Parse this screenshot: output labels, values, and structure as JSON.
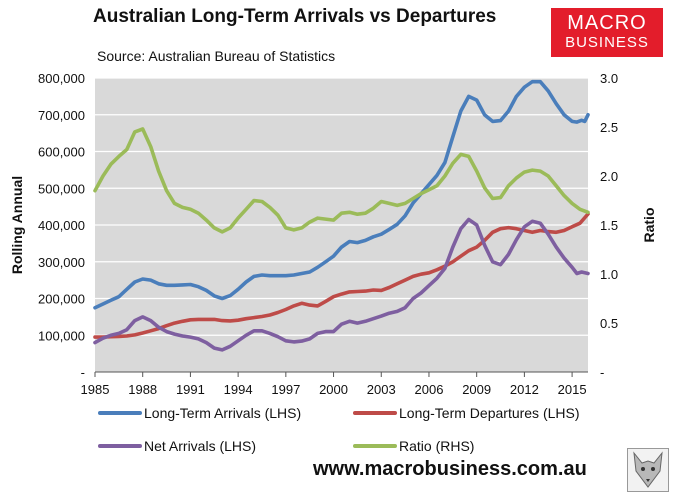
{
  "header": {
    "title": "Australian Long-Term Arrivals vs Departures",
    "subtitle": "Source: Australian Bureau of Statistics"
  },
  "logo": {
    "line1": "MACRO",
    "line2": "BUSINESS",
    "color": "#e31d2b"
  },
  "footer": {
    "website": "www.macrobusiness.com.au"
  },
  "chart_data": {
    "type": "line",
    "ylabel": "Rolling Annual",
    "y2label": "Ratio",
    "ylim": [
      0,
      800000
    ],
    "y2lim": [
      0,
      3.0
    ],
    "xlim": [
      1985,
      2016
    ],
    "x_ticks": [
      "1985",
      "1988",
      "1991",
      "1994",
      "1997",
      "2000",
      "2003",
      "2006",
      "2009",
      "2012",
      "2015"
    ],
    "y_ticks": [
      "-",
      "100,000",
      "200,000",
      "300,000",
      "400,000",
      "500,000",
      "600,000",
      "700,000",
      "800,000"
    ],
    "y2_ticks": [
      "-",
      "0.5",
      "1.0",
      "1.5",
      "2.0",
      "2.5",
      "3.0"
    ],
    "grid": true,
    "plot_background": "#d9d9d9",
    "legend_position": "bottom",
    "series": [
      {
        "name": "Long-Term Arrivals (LHS)",
        "axis": "left",
        "color": "#4a7ebb",
        "points": [
          [
            1985,
            175000
          ],
          [
            1985.5,
            185000
          ],
          [
            1986,
            195000
          ],
          [
            1986.5,
            205000
          ],
          [
            1987,
            225000
          ],
          [
            1987.5,
            245000
          ],
          [
            1988,
            253000
          ],
          [
            1988.5,
            250000
          ],
          [
            1989,
            240000
          ],
          [
            1989.5,
            236000
          ],
          [
            1990,
            236000
          ],
          [
            1990.5,
            237000
          ],
          [
            1991,
            238000
          ],
          [
            1991.5,
            232000
          ],
          [
            1992,
            222000
          ],
          [
            1992.5,
            207000
          ],
          [
            1993,
            200000
          ],
          [
            1993.5,
            208000
          ],
          [
            1994,
            225000
          ],
          [
            1994.5,
            245000
          ],
          [
            1995,
            260000
          ],
          [
            1995.5,
            264000
          ],
          [
            1996,
            262000
          ],
          [
            1996.5,
            262000
          ],
          [
            1997,
            262000
          ],
          [
            1997.5,
            264000
          ],
          [
            1998,
            268000
          ],
          [
            1998.5,
            272000
          ],
          [
            1999,
            285000
          ],
          [
            1999.5,
            300000
          ],
          [
            2000,
            315000
          ],
          [
            2000.5,
            340000
          ],
          [
            2001,
            355000
          ],
          [
            2001.5,
            352000
          ],
          [
            2002,
            358000
          ],
          [
            2002.5,
            368000
          ],
          [
            2003,
            375000
          ],
          [
            2003.5,
            388000
          ],
          [
            2004,
            402000
          ],
          [
            2004.5,
            425000
          ],
          [
            2005,
            460000
          ],
          [
            2005.5,
            485000
          ],
          [
            2006,
            510000
          ],
          [
            2006.5,
            535000
          ],
          [
            2007,
            570000
          ],
          [
            2007.5,
            640000
          ],
          [
            2008,
            710000
          ],
          [
            2008.5,
            750000
          ],
          [
            2009,
            740000
          ],
          [
            2009.5,
            700000
          ],
          [
            2010,
            682000
          ],
          [
            2010.5,
            684000
          ],
          [
            2011,
            710000
          ],
          [
            2011.5,
            750000
          ],
          [
            2012,
            775000
          ],
          [
            2012.5,
            790000
          ],
          [
            2013,
            790000
          ],
          [
            2013.5,
            765000
          ],
          [
            2014,
            730000
          ],
          [
            2014.5,
            700000
          ],
          [
            2015,
            682000
          ],
          [
            2015.3,
            680000
          ],
          [
            2015.6,
            685000
          ],
          [
            2015.8,
            682000
          ],
          [
            2016,
            700000
          ]
        ]
      },
      {
        "name": "Long-Term Departures (LHS)",
        "axis": "left",
        "color": "#be4b48",
        "points": [
          [
            1985,
            95000
          ],
          [
            1985.5,
            95000
          ],
          [
            1986,
            96000
          ],
          [
            1986.5,
            97000
          ],
          [
            1987,
            98000
          ],
          [
            1987.5,
            101000
          ],
          [
            1988,
            106000
          ],
          [
            1988.5,
            112000
          ],
          [
            1989,
            118000
          ],
          [
            1989.5,
            126000
          ],
          [
            1990,
            133000
          ],
          [
            1990.5,
            138000
          ],
          [
            1991,
            142000
          ],
          [
            1991.5,
            143000
          ],
          [
            1992,
            143000
          ],
          [
            1992.5,
            143000
          ],
          [
            1993,
            140000
          ],
          [
            1993.5,
            139000
          ],
          [
            1994,
            141000
          ],
          [
            1994.5,
            145000
          ],
          [
            1995,
            148000
          ],
          [
            1995.5,
            151000
          ],
          [
            1996,
            155000
          ],
          [
            1996.5,
            162000
          ],
          [
            1997,
            170000
          ],
          [
            1997.5,
            180000
          ],
          [
            1998,
            187000
          ],
          [
            1998.5,
            182000
          ],
          [
            1999,
            180000
          ],
          [
            1999.5,
            192000
          ],
          [
            2000,
            205000
          ],
          [
            2000.5,
            212000
          ],
          [
            2001,
            218000
          ],
          [
            2001.5,
            219000
          ],
          [
            2002,
            220000
          ],
          [
            2002.5,
            223000
          ],
          [
            2003,
            222000
          ],
          [
            2003.5,
            230000
          ],
          [
            2004,
            240000
          ],
          [
            2004.5,
            250000
          ],
          [
            2005,
            260000
          ],
          [
            2005.5,
            266000
          ],
          [
            2006,
            270000
          ],
          [
            2006.5,
            278000
          ],
          [
            2007,
            288000
          ],
          [
            2007.5,
            300000
          ],
          [
            2008,
            315000
          ],
          [
            2008.5,
            330000
          ],
          [
            2009,
            340000
          ],
          [
            2009.5,
            358000
          ],
          [
            2010,
            380000
          ],
          [
            2010.5,
            390000
          ],
          [
            2011,
            393000
          ],
          [
            2011.5,
            390000
          ],
          [
            2012,
            385000
          ],
          [
            2012.5,
            380000
          ],
          [
            2013,
            385000
          ],
          [
            2013.5,
            382000
          ],
          [
            2014,
            380000
          ],
          [
            2014.5,
            385000
          ],
          [
            2015,
            395000
          ],
          [
            2015.5,
            405000
          ],
          [
            2016,
            430000
          ]
        ]
      },
      {
        "name": "Net Arrivals (LHS)",
        "axis": "left",
        "color": "#7e5fa0",
        "points": [
          [
            1985,
            80000
          ],
          [
            1985.5,
            92000
          ],
          [
            1986,
            100000
          ],
          [
            1986.5,
            105000
          ],
          [
            1987,
            115000
          ],
          [
            1987.5,
            140000
          ],
          [
            1988,
            150000
          ],
          [
            1988.5,
            140000
          ],
          [
            1989,
            122000
          ],
          [
            1989.5,
            110000
          ],
          [
            1990,
            103000
          ],
          [
            1990.5,
            98000
          ],
          [
            1991,
            95000
          ],
          [
            1991.5,
            90000
          ],
          [
            1992,
            80000
          ],
          [
            1992.5,
            65000
          ],
          [
            1993,
            60000
          ],
          [
            1993.5,
            70000
          ],
          [
            1994,
            85000
          ],
          [
            1994.5,
            100000
          ],
          [
            1995,
            112000
          ],
          [
            1995.5,
            112000
          ],
          [
            1996,
            105000
          ],
          [
            1996.5,
            96000
          ],
          [
            1997,
            85000
          ],
          [
            1997.5,
            82000
          ],
          [
            1998,
            84000
          ],
          [
            1998.5,
            90000
          ],
          [
            1999,
            105000
          ],
          [
            1999.5,
            110000
          ],
          [
            2000,
            110000
          ],
          [
            2000.5,
            130000
          ],
          [
            2001,
            138000
          ],
          [
            2001.5,
            133000
          ],
          [
            2002,
            138000
          ],
          [
            2002.5,
            145000
          ],
          [
            2003,
            152000
          ],
          [
            2003.5,
            160000
          ],
          [
            2004,
            165000
          ],
          [
            2004.5,
            175000
          ],
          [
            2005,
            200000
          ],
          [
            2005.5,
            215000
          ],
          [
            2006,
            235000
          ],
          [
            2006.5,
            255000
          ],
          [
            2007,
            282000
          ],
          [
            2007.5,
            340000
          ],
          [
            2008,
            390000
          ],
          [
            2008.5,
            415000
          ],
          [
            2009,
            400000
          ],
          [
            2009.5,
            345000
          ],
          [
            2010,
            300000
          ],
          [
            2010.5,
            292000
          ],
          [
            2011,
            320000
          ],
          [
            2011.5,
            360000
          ],
          [
            2012,
            395000
          ],
          [
            2012.5,
            410000
          ],
          [
            2013,
            405000
          ],
          [
            2013.5,
            375000
          ],
          [
            2014,
            340000
          ],
          [
            2014.5,
            310000
          ],
          [
            2015,
            285000
          ],
          [
            2015.3,
            268000
          ],
          [
            2015.6,
            272000
          ],
          [
            2016,
            268000
          ]
        ]
      },
      {
        "name": "Ratio (RHS)",
        "axis": "right",
        "color": "#9bbb59",
        "points": [
          [
            1985,
            1.85
          ],
          [
            1985.5,
            2.0
          ],
          [
            1986,
            2.12
          ],
          [
            1986.5,
            2.2
          ],
          [
            1987,
            2.27
          ],
          [
            1987.5,
            2.45
          ],
          [
            1988,
            2.48
          ],
          [
            1988.5,
            2.3
          ],
          [
            1989,
            2.05
          ],
          [
            1989.5,
            1.85
          ],
          [
            1990,
            1.72
          ],
          [
            1990.5,
            1.68
          ],
          [
            1991,
            1.66
          ],
          [
            1991.5,
            1.62
          ],
          [
            1992,
            1.55
          ],
          [
            1992.5,
            1.47
          ],
          [
            1993,
            1.43
          ],
          [
            1993.5,
            1.47
          ],
          [
            1994,
            1.57
          ],
          [
            1994.5,
            1.66
          ],
          [
            1995,
            1.75
          ],
          [
            1995.5,
            1.74
          ],
          [
            1996,
            1.68
          ],
          [
            1996.5,
            1.6
          ],
          [
            1997,
            1.47
          ],
          [
            1997.5,
            1.45
          ],
          [
            1998,
            1.47
          ],
          [
            1998.5,
            1.53
          ],
          [
            1999,
            1.57
          ],
          [
            1999.5,
            1.56
          ],
          [
            2000,
            1.55
          ],
          [
            2000.5,
            1.62
          ],
          [
            2001,
            1.63
          ],
          [
            2001.5,
            1.61
          ],
          [
            2002,
            1.62
          ],
          [
            2002.5,
            1.67
          ],
          [
            2003,
            1.74
          ],
          [
            2003.5,
            1.72
          ],
          [
            2004,
            1.7
          ],
          [
            2004.5,
            1.72
          ],
          [
            2005,
            1.77
          ],
          [
            2005.5,
            1.82
          ],
          [
            2006,
            1.86
          ],
          [
            2006.5,
            1.9
          ],
          [
            2007,
            2.0
          ],
          [
            2007.5,
            2.13
          ],
          [
            2008,
            2.22
          ],
          [
            2008.5,
            2.2
          ],
          [
            2009,
            2.05
          ],
          [
            2009.5,
            1.88
          ],
          [
            2010,
            1.77
          ],
          [
            2010.5,
            1.78
          ],
          [
            2011,
            1.9
          ],
          [
            2011.5,
            1.98
          ],
          [
            2012,
            2.04
          ],
          [
            2012.5,
            2.06
          ],
          [
            2013,
            2.05
          ],
          [
            2013.5,
            2.0
          ],
          [
            2014,
            1.9
          ],
          [
            2014.5,
            1.8
          ],
          [
            2015,
            1.72
          ],
          [
            2015.5,
            1.66
          ],
          [
            2016,
            1.63
          ]
        ]
      }
    ]
  }
}
